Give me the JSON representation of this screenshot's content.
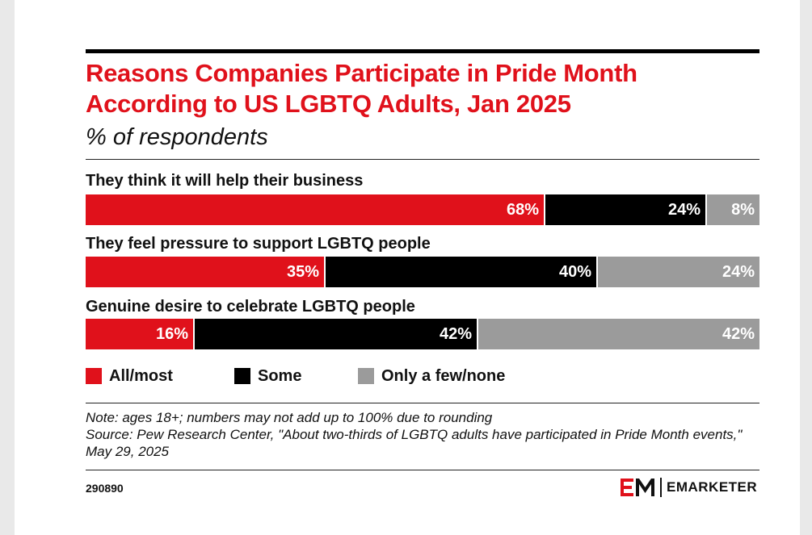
{
  "header": {
    "title": "Reasons Companies Participate in Pride Month According to US LGBTQ Adults, Jan 2025",
    "subtitle": "% of respondents"
  },
  "colors": {
    "all_most": "#e0111b",
    "some": "#000000",
    "few_none": "#9b9b9b"
  },
  "chart_data": {
    "type": "bar",
    "orientation": "horizontal",
    "stacked": true,
    "categories": [
      "They think it will help their business",
      "They feel pressure to support LGBTQ people",
      "Genuine desire to celebrate LGBTQ people"
    ],
    "series": [
      {
        "name": "All/most",
        "values": [
          68,
          35,
          16
        ],
        "labels": [
          "68%",
          "35%",
          "16%"
        ]
      },
      {
        "name": "Some",
        "values": [
          24,
          40,
          42
        ],
        "labels": [
          "24%",
          "40%",
          "42%"
        ]
      },
      {
        "name": "Only a few/none",
        "values": [
          8,
          24,
          42
        ],
        "labels": [
          "8%",
          "24%",
          "42%"
        ]
      }
    ],
    "title": "Reasons Companies Participate in Pride Month According to US LGBTQ Adults, Jan 2025",
    "subtitle": "% of respondents",
    "legend": "bottom"
  },
  "footer": {
    "note": "Note: ages 18+; numbers may not add up to 100% due to rounding",
    "source": "Source: Pew Research Center, \"About two-thirds of LGBTQ adults have participated in Pride Month events,\" May 29, 2025",
    "chart_id": "290890",
    "brand_mark": "EM",
    "brand_name": "EMARKETER"
  }
}
